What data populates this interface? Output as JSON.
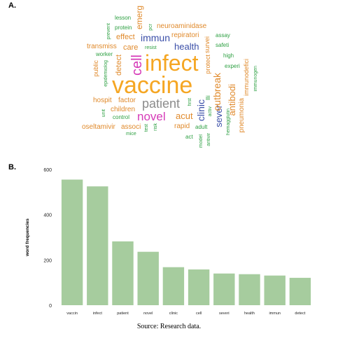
{
  "panel_a_label": "A.",
  "panel_b_label": "B.",
  "source": "Source: Research data.",
  "colors": {
    "orange": "#f5a623",
    "dark_orange": "#e08a2c",
    "green": "#2ea043",
    "blue": "#3b4fa8",
    "magenta": "#d63ab8",
    "gray": "#8c8c8c",
    "bar": "#a6cc9e"
  },
  "word_cloud": [
    {
      "word": "infect",
      "color": "#f5a623"
    },
    {
      "word": "vaccine",
      "color": "#f5a623"
    },
    {
      "word": "patient",
      "color": "#8c8c8c"
    },
    {
      "word": "novel",
      "color": "#d63ab8"
    },
    {
      "word": "cell",
      "color": "#d63ab8"
    },
    {
      "word": "immun",
      "color": "#3b4fa8"
    },
    {
      "word": "health",
      "color": "#3b4fa8"
    },
    {
      "word": "clinic",
      "color": "#3b4fa8"
    },
    {
      "word": "sever",
      "color": "#3b4fa8"
    },
    {
      "word": "acut",
      "color": "#e08a2c"
    },
    {
      "word": "outbreak",
      "color": "#e08a2c"
    },
    {
      "word": "antibodi",
      "color": "#e08a2c"
    },
    {
      "word": "emerg",
      "color": "#e08a2c"
    },
    {
      "word": "detect",
      "color": "#e08a2c"
    },
    {
      "word": "care",
      "color": "#e08a2c"
    },
    {
      "word": "effect",
      "color": "#e08a2c"
    },
    {
      "word": "repiratori",
      "color": "#e08a2c"
    },
    {
      "word": "neuroaminidase",
      "color": "#e08a2c"
    },
    {
      "word": "transmiss",
      "color": "#e08a2c"
    },
    {
      "word": "hospit",
      "color": "#e08a2c"
    },
    {
      "word": "factor",
      "color": "#e08a2c"
    },
    {
      "word": "children",
      "color": "#e08a2c"
    },
    {
      "word": "oseltamivir",
      "color": "#e08a2c"
    },
    {
      "word": "associ",
      "color": "#e08a2c"
    },
    {
      "word": "rapid",
      "color": "#e08a2c"
    },
    {
      "word": "pneumonia",
      "color": "#e08a2c"
    },
    {
      "word": "public",
      "color": "#e08a2c"
    },
    {
      "word": "immunodefici",
      "color": "#e08a2c"
    },
    {
      "word": "protect",
      "color": "#e08a2c"
    },
    {
      "word": "survei",
      "color": "#e08a2c"
    },
    {
      "word": "lesson",
      "color": "#2ea043"
    },
    {
      "word": "protein",
      "color": "#2ea043"
    },
    {
      "word": "prevent",
      "color": "#2ea043"
    },
    {
      "word": "pcr",
      "color": "#2ea043"
    },
    {
      "word": "assay",
      "color": "#2ea043"
    },
    {
      "word": "safeti",
      "color": "#2ea043"
    },
    {
      "word": "high",
      "color": "#2ea043"
    },
    {
      "word": "experi",
      "color": "#2ea043"
    },
    {
      "word": "immunogen",
      "color": "#2ea043"
    },
    {
      "word": "worker",
      "color": "#2ea043"
    },
    {
      "word": "resist",
      "color": "#2ea043"
    },
    {
      "word": "epidemiolog",
      "color": "#2ea043"
    },
    {
      "word": "unit",
      "color": "#2ea043"
    },
    {
      "word": "control",
      "color": "#2ea043"
    },
    {
      "word": "mice",
      "color": "#2ea043"
    },
    {
      "word": "test",
      "color": "#2ea043"
    },
    {
      "word": "risk",
      "color": "#2ea043"
    },
    {
      "word": "first",
      "color": "#2ea043"
    },
    {
      "word": "ill",
      "color": "#2ea043"
    },
    {
      "word": "activ",
      "color": "#2ea043"
    },
    {
      "word": "adult",
      "color": "#2ea043"
    },
    {
      "word": "act",
      "color": "#2ea043"
    },
    {
      "word": "model",
      "color": "#2ea043"
    },
    {
      "word": "antivir",
      "color": "#2ea043"
    },
    {
      "word": "hemagglutin",
      "color": "#2ea043"
    }
  ],
  "chart_data": {
    "type": "bar",
    "title": "",
    "xlabel": "",
    "ylabel": "word frequencies",
    "categories": [
      "vaccin",
      "infect",
      "patient",
      "novel",
      "clinic",
      "cell",
      "severi",
      "health",
      "immun",
      "detect"
    ],
    "values": [
      555,
      525,
      282,
      236,
      168,
      158,
      140,
      137,
      131,
      121
    ],
    "ylim": [
      0,
      600
    ],
    "yticks": [
      0,
      200,
      400,
      600
    ],
    "grid": false,
    "bar_color": "#a6cc9e"
  }
}
